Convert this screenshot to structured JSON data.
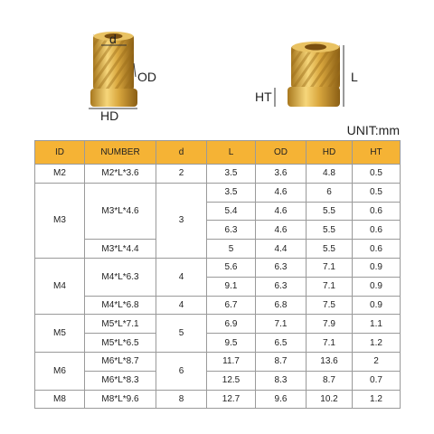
{
  "labels": {
    "d": "d",
    "od": "OD",
    "hd": "HD",
    "l": "L",
    "ht": "HT",
    "unit": "UNIT:mm"
  },
  "table": {
    "header": [
      "ID",
      "NUMBER",
      "d",
      "L",
      "OD",
      "HD",
      "HT"
    ],
    "rows": [
      [
        "M2",
        "M2*L*3.6",
        "2",
        "3.5",
        "3.6",
        "4.8",
        "0.5"
      ],
      [
        "M3",
        "M3*L*4.6",
        "3",
        "3.5",
        "4.6",
        "6",
        "0.5"
      ],
      [
        "5.4",
        "4.6",
        "5.5",
        "0.6"
      ],
      [
        "6.3",
        "4.6",
        "5.5",
        "0.6"
      ],
      [
        "M3*L*4.4",
        "5",
        "4.4",
        "5.5",
        "0.6"
      ],
      [
        "M4",
        "M4*L*6.3",
        "4",
        "5.6",
        "6.3",
        "7.1",
        "0.9"
      ],
      [
        "9.1",
        "6.3",
        "7.1",
        "0.9"
      ],
      [
        "M4*L*6.8",
        "4",
        "6.7",
        "6.8",
        "7.5",
        "0.9"
      ],
      [
        "M5",
        "M5*L*7.1",
        "5",
        "6.9",
        "7.1",
        "7.9",
        "1.1"
      ],
      [
        "M5*L*6.5",
        "9.5",
        "6.5",
        "7.1",
        "1.2"
      ],
      [
        "M6",
        "M6*L*8.7",
        "6",
        "11.7",
        "8.7",
        "13.6",
        "2"
      ],
      [
        "M6*L*8.3",
        "12.5",
        "8.3",
        "8.7",
        "0.7"
      ],
      [
        "M8",
        "M8*L*9.6",
        "8",
        "12.7",
        "9.6",
        "10.2",
        "1.2"
      ]
    ]
  }
}
